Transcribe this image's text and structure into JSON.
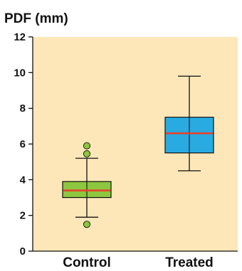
{
  "chart_data": {
    "type": "box",
    "title": "",
    "ylabel": "PDF (mm)",
    "xlabel": "",
    "ylim": [
      0,
      12
    ],
    "yticks": [
      "0",
      "2",
      "4",
      "6",
      "8",
      "10",
      "12"
    ],
    "grid": false,
    "categories": [
      "Control",
      "Treated"
    ],
    "boxes": [
      {
        "category": "Control",
        "whisker_low": 1.9,
        "q1": 3.0,
        "median": 3.4,
        "q3": 3.9,
        "whisker_high": 5.2,
        "outliers": [
          1.5,
          5.45,
          5.9
        ],
        "box_color": "#8dc63f"
      },
      {
        "category": "Treated",
        "whisker_low": 4.5,
        "q1": 5.5,
        "median": 6.6,
        "q3": 7.5,
        "whisker_high": 9.8,
        "outliers": [],
        "box_color": "#29abe2"
      }
    ],
    "colors": {
      "plot_background": "#fde7b8",
      "median_line": "#e8412c",
      "outlier_fill": "#8dc63f",
      "axis": "#111111"
    }
  }
}
